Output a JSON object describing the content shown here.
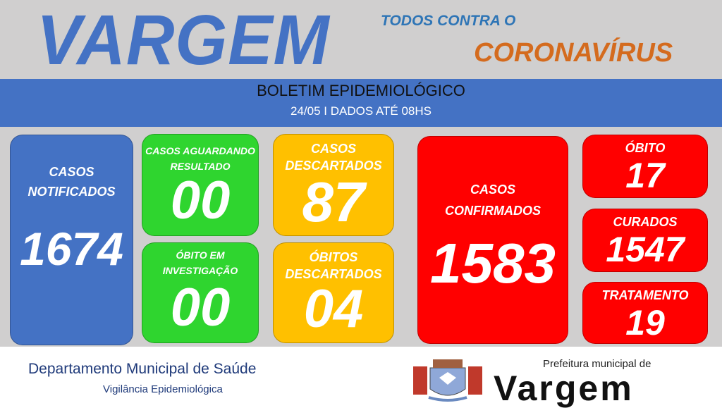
{
  "header": {
    "title": "VARGEM",
    "tagline": "TODOS CONTRA O",
    "virus": "CORONAVÍRUS"
  },
  "band": {
    "title": "BOLETIM EPIDEMIOLÓGICO",
    "subtitle": "24/05 I DADOS ATÉ 08HS"
  },
  "cards": {
    "notificados": {
      "label1": "CASOS",
      "label2": "NOTIFICADOS",
      "value": "1674"
    },
    "aguardando": {
      "label1": "CASOS AGUARDANDO",
      "label2": "RESULTADO",
      "value": "00"
    },
    "investigacao": {
      "label1": "ÓBITO EM",
      "label2": "INVESTIGAÇÃO",
      "value": "00"
    },
    "descartados": {
      "label1": "CASOS",
      "label2": "DESCARTADOS",
      "value": "87"
    },
    "obitos_descartados": {
      "label1": "ÓBITOS",
      "label2": "DESCARTADOS",
      "value": "04"
    },
    "confirmados": {
      "label1": "CASOS",
      "label2": "CONFIRMADOS",
      "value": "1583"
    },
    "obito": {
      "label": "ÓBITO",
      "value": "17"
    },
    "curados": {
      "label": "CURADOS",
      "value": "1547"
    },
    "tratamento": {
      "label": "TRATAMENTO",
      "value": "19"
    }
  },
  "colors": {
    "blue": "#4472c4",
    "green": "#2fd52f",
    "yellow": "#ffc000",
    "red": "#ff0000",
    "orange": "#d46b1e"
  },
  "footer": {
    "department": "Departamento Municipal de Saúde",
    "division": "Vigilância Epidemiológica",
    "logo_top": "Prefeitura municipal de",
    "logo_name": "Vargem"
  }
}
